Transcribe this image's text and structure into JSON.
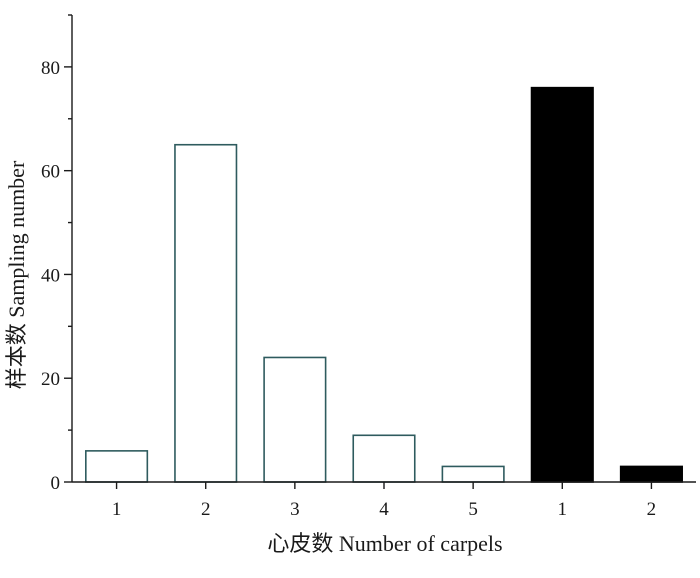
{
  "chart_data": {
    "type": "bar",
    "categories": [
      "1",
      "2",
      "3",
      "4",
      "5",
      "1",
      "2"
    ],
    "values": [
      6,
      65,
      24,
      9,
      3,
      76,
      3
    ],
    "bar_fills": [
      "#ffffff",
      "#ffffff",
      "#ffffff",
      "#ffffff",
      "#ffffff",
      "#000000",
      "#000000"
    ],
    "bar_outline_color": "#2e5b5e",
    "xlabel": "心皮数 Number of carpels",
    "ylabel": "样本数 Sampling number",
    "ylim": [
      0,
      90
    ],
    "yticks": [
      "0",
      "20",
      "40",
      "60",
      "80"
    ],
    "ytick_values": [
      0,
      20,
      40,
      60,
      80
    ],
    "grid": false,
    "legend": "none"
  }
}
